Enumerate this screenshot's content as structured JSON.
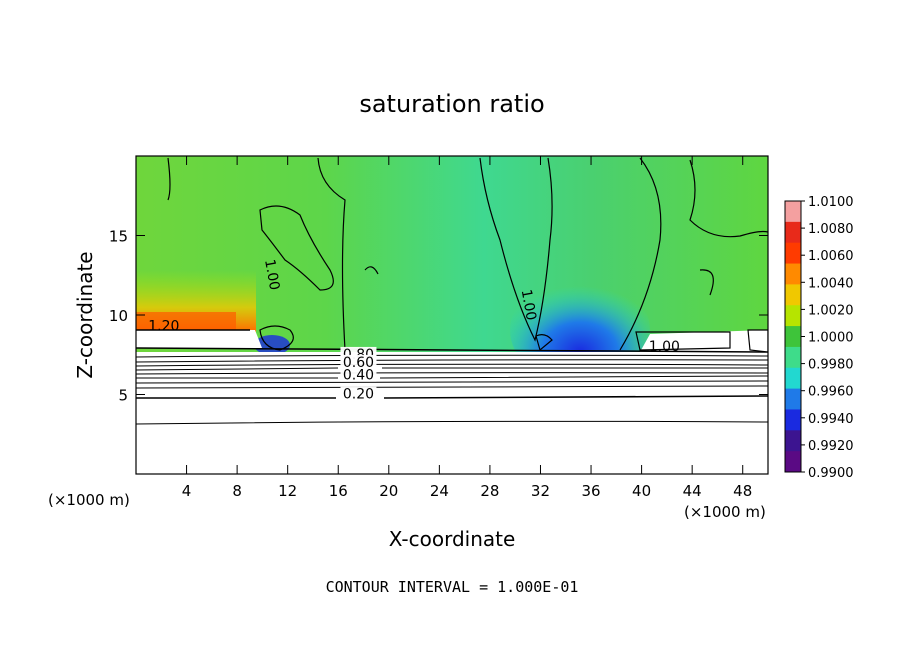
{
  "chart_data": {
    "type": "heatmap",
    "title": "saturation ratio",
    "xlabel": "X-coordinate",
    "ylabel": "Z-coordinate",
    "x_unit_label": "(×1000 m)",
    "x_unit_label_right": "(×1000 m)",
    "xlim": [
      0,
      50
    ],
    "ylim": [
      0,
      20
    ],
    "x_ticks": [
      "4",
      "8",
      "12",
      "16",
      "20",
      "24",
      "28",
      "32",
      "36",
      "40",
      "44",
      "48"
    ],
    "y_ticks": [
      "5",
      "10",
      "15"
    ],
    "footer": "CONTOUR INTERVAL = 1.000E-01",
    "colorbar": {
      "labels": [
        "1.0100",
        "1.0080",
        "1.0060",
        "1.0040",
        "1.0020",
        "1.0000",
        "0.9980",
        "0.9960",
        "0.9940",
        "0.9920",
        "0.9900"
      ],
      "colors": [
        "#f4a0a0",
        "#e82a1a",
        "#ff3b00",
        "#ff8a00",
        "#f0c800",
        "#b6e400",
        "#3ec43a",
        "#3edc8a",
        "#22d8d0",
        "#1f7ae8",
        "#1a2ae0",
        "#3c1490",
        "#5a0a84"
      ]
    },
    "contour_labels": [
      {
        "text": "1.20",
        "x": 2.2,
        "y": 9.1
      },
      {
        "text": "1.00",
        "x": 10.5,
        "y": 12.5
      },
      {
        "text": "1.00",
        "x": 30.8,
        "y": 10.6
      },
      {
        "text": "1.00",
        "x": 41.8,
        "y": 7.8
      },
      {
        "text": "0.80",
        "x": 17.6,
        "y": 7.3
      },
      {
        "text": "0.60",
        "x": 17.6,
        "y": 6.8
      },
      {
        "text": "0.40",
        "x": 17.6,
        "y": 6.0
      },
      {
        "text": "0.20",
        "x": 17.6,
        "y": 4.8
      }
    ]
  }
}
